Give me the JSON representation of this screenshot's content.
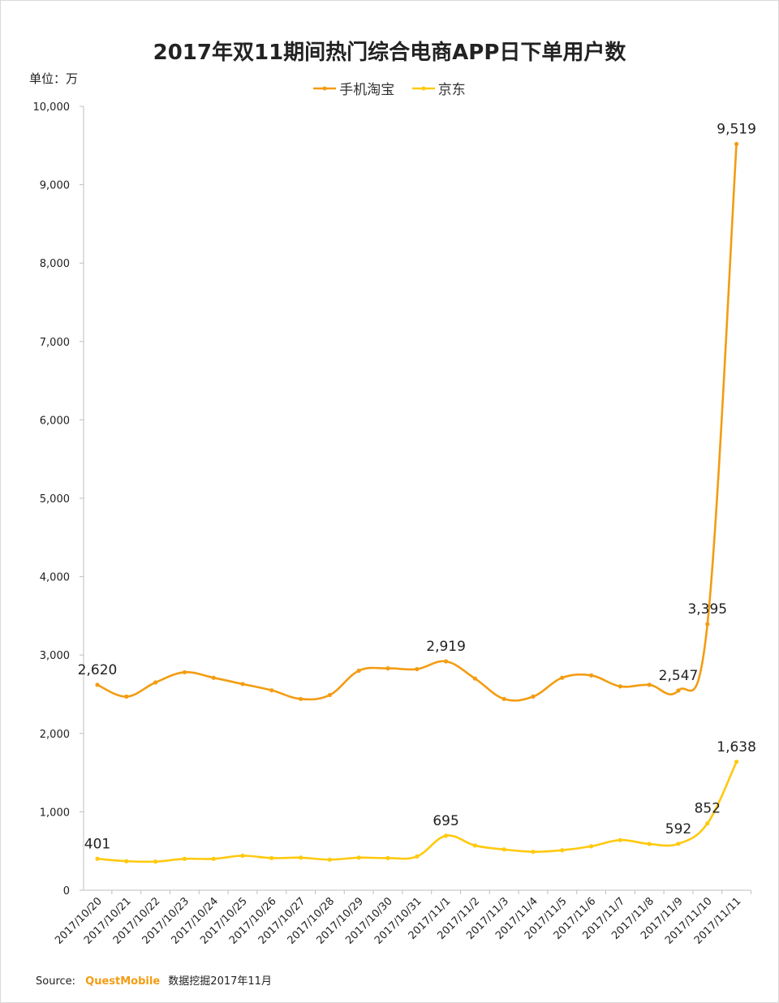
{
  "title": "2017年双11期间热门综合电商APP日下单用户数",
  "unit_label": "单位：万",
  "footer": {
    "source_label": "Source:",
    "brand": "QuestMobile",
    "note": "数据挖掘2017年11月"
  },
  "colors": {
    "taobao": "#F39C12",
    "jd": "#FFC90E",
    "axis": "#bfbfbf"
  },
  "chart_data": {
    "type": "line",
    "title": "2017年双11期间热门综合电商APP日下单用户数",
    "ylabel": "单位：万",
    "xlabel": "",
    "ylim": [
      0,
      10000
    ],
    "yticks": [
      0,
      1000,
      2000,
      3000,
      4000,
      5000,
      6000,
      7000,
      8000,
      9000,
      10000
    ],
    "ytick_labels": [
      "0",
      "1,000",
      "2,000",
      "3,000",
      "4,000",
      "5,000",
      "6,000",
      "7,000",
      "8,000",
      "9,000",
      "10,000"
    ],
    "legend_position": "top",
    "grid": false,
    "smooth": true,
    "categories": [
      "2017/10/20",
      "2017/10/21",
      "2017/10/22",
      "2017/10/23",
      "2017/10/24",
      "2017/10/25",
      "2017/10/26",
      "2017/10/27",
      "2017/10/28",
      "2017/10/29",
      "2017/10/30",
      "2017/10/31",
      "2017/11/1",
      "2017/11/2",
      "2017/11/3",
      "2017/11/4",
      "2017/11/5",
      "2017/11/6",
      "2017/11/7",
      "2017/11/8",
      "2017/11/9",
      "2017/11/10",
      "2017/11/11"
    ],
    "series": [
      {
        "name": "手机淘宝",
        "color": "#F39C12",
        "values": [
          2620,
          2470,
          2650,
          2780,
          2710,
          2630,
          2550,
          2440,
          2490,
          2800,
          2830,
          2820,
          2919,
          2700,
          2440,
          2470,
          2710,
          2740,
          2600,
          2620,
          2547,
          3395,
          9519
        ],
        "labels": [
          {
            "index": 0,
            "text": "2,620"
          },
          {
            "index": 12,
            "text": "2,919"
          },
          {
            "index": 20,
            "text": "2,547"
          },
          {
            "index": 21,
            "text": "3,395"
          },
          {
            "index": 22,
            "text": "9,519"
          }
        ]
      },
      {
        "name": "京东",
        "color": "#FFC90E",
        "values": [
          401,
          370,
          365,
          400,
          400,
          440,
          410,
          415,
          390,
          415,
          410,
          430,
          695,
          570,
          520,
          490,
          510,
          560,
          640,
          590,
          592,
          852,
          1638
        ],
        "labels": [
          {
            "index": 0,
            "text": "401"
          },
          {
            "index": 12,
            "text": "695"
          },
          {
            "index": 20,
            "text": "592"
          },
          {
            "index": 21,
            "text": "852"
          },
          {
            "index": 22,
            "text": "1,638"
          }
        ]
      }
    ]
  }
}
